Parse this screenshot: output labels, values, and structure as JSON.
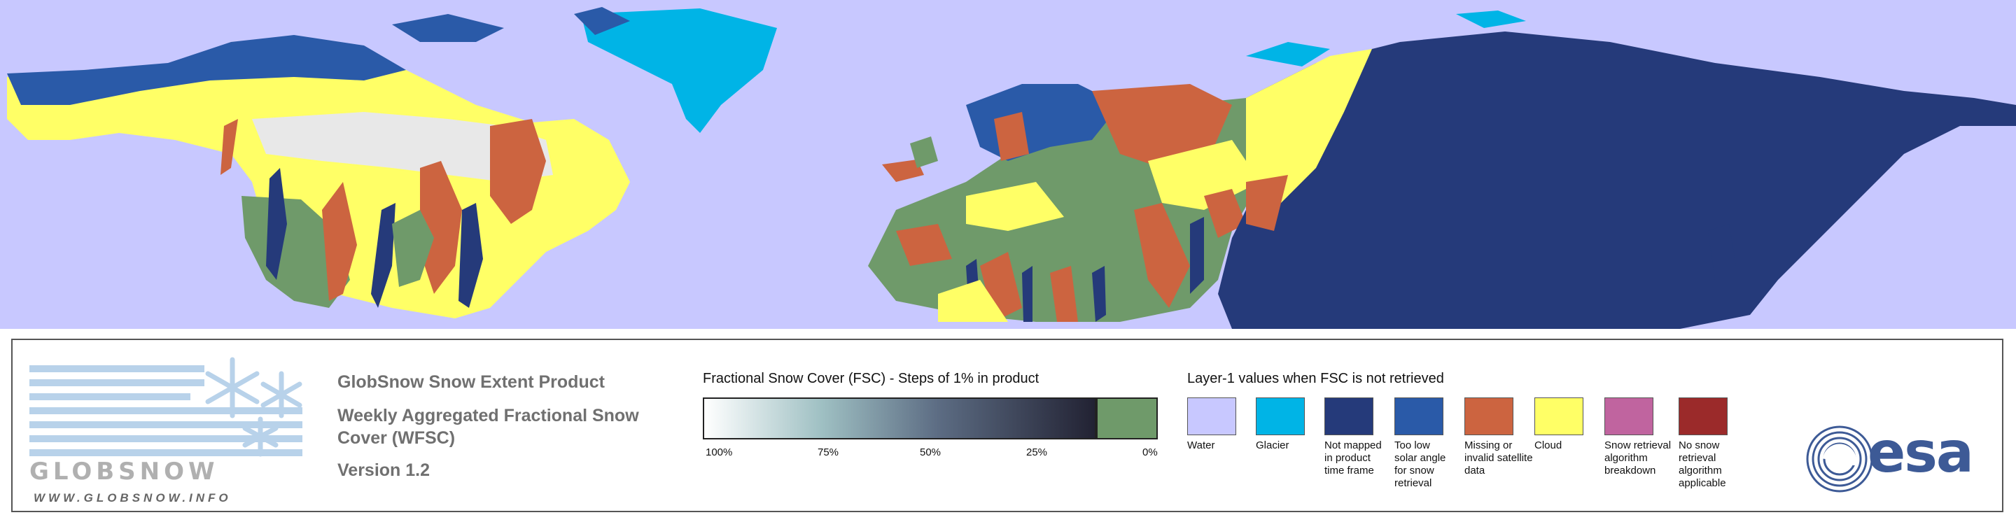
{
  "product": {
    "title": "GlobSnow Snow Extent Product",
    "subtitle": "Weekly Aggregated Fractional Snow Cover (WFSC)",
    "version": "Version 1.2"
  },
  "logo": {
    "globsnow_text": "GLOBSNOW",
    "url": "WWW.GLOBSNOW.INFO",
    "esa_text": "esa"
  },
  "fsc_scale": {
    "title": "Fractional Snow Cover (FSC) - Steps of 1% in product",
    "ticks": [
      "100%",
      "75%",
      "50%",
      "25%",
      "0%"
    ],
    "no_snow_color": "#6f9a6a"
  },
  "layer1": {
    "title": "Layer-1 values when FSC is not retrieved",
    "items": [
      {
        "label": "Water",
        "color": "#c8c8ff"
      },
      {
        "label": "Glacier",
        "color": "#00b4e6"
      },
      {
        "label": "Not mapped in product time frame",
        "color": "#253a7a"
      },
      {
        "label": "Too low solar angle for snow retrieval",
        "color": "#2a5aa8"
      },
      {
        "label": "Missing or invalid satellite data",
        "color": "#cc6440"
      },
      {
        "label": "Cloud",
        "color": "#ffff66"
      },
      {
        "label": "Snow retrieval algorithm breakdown",
        "color": "#c0649f"
      },
      {
        "label": "No snow retrieval algorithm applicable",
        "color": "#9b2a2a"
      }
    ]
  }
}
